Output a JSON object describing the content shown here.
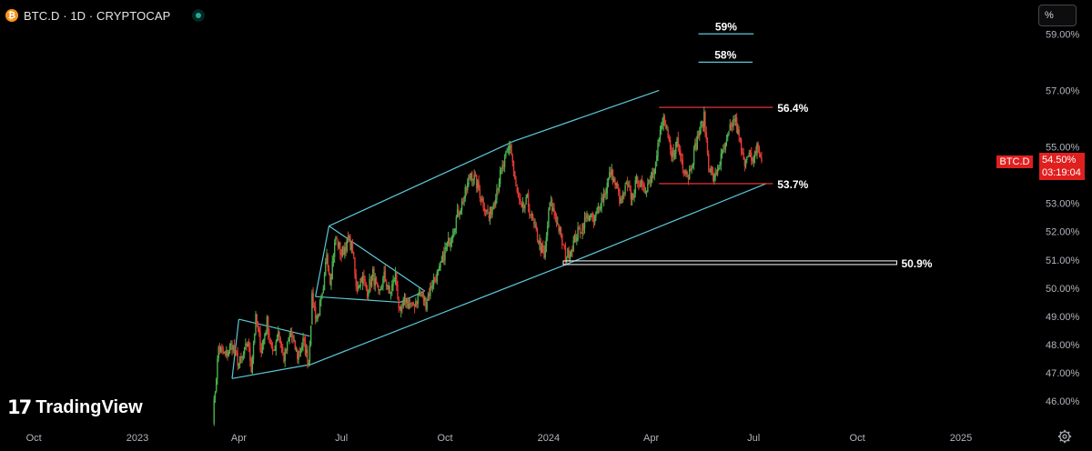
{
  "header": {
    "symbol_title": "BTC.D · 1D · CRYPTOCAP",
    "coin_icon": "bitcoin-icon",
    "status_icon": "market-open-dot-icon"
  },
  "scale_button": {
    "label": "%"
  },
  "last_price": {
    "symbol": "BTC.D",
    "value": "54.50%",
    "countdown": "03:19:04",
    "color": "#e01f1f"
  },
  "watermark": {
    "text": "TradingView",
    "icon": "tradingview-logo-icon"
  },
  "settings_icon": "gear-icon",
  "colors": {
    "background": "#000000",
    "up": "#4caf50",
    "down": "#e53935",
    "channel": "#5cc8d8",
    "axis_text": "#b2b5be",
    "level_red": "#ff3b3b"
  },
  "chart_data": {
    "type": "candlestick",
    "title": "BTC.D · 1D · CRYPTOCAP",
    "ylabel": "%",
    "ylim": [
      45.2,
      60.2
    ],
    "xlim": [
      "2022-09-01",
      "2025-03-05"
    ],
    "grid": false,
    "x_ticks": [
      {
        "date": "2022-10-01",
        "label": "Oct"
      },
      {
        "date": "2023-01-01",
        "label": "2023"
      },
      {
        "date": "2023-04-01",
        "label": "Apr"
      },
      {
        "date": "2023-07-01",
        "label": "Jul"
      },
      {
        "date": "2023-10-01",
        "label": "Oct"
      },
      {
        "date": "2024-01-01",
        "label": "2024"
      },
      {
        "date": "2024-04-01",
        "label": "Apr"
      },
      {
        "date": "2024-07-01",
        "label": "Jul"
      },
      {
        "date": "2024-10-01",
        "label": "Oct"
      },
      {
        "date": "2025-01-01",
        "label": "2025"
      }
    ],
    "y_ticks": [
      {
        "value": 46,
        "label": "46.00%"
      },
      {
        "value": 47,
        "label": "47.00%"
      },
      {
        "value": 48,
        "label": "48.00%"
      },
      {
        "value": 49,
        "label": "49.00%"
      },
      {
        "value": 50,
        "label": "50.00%"
      },
      {
        "value": 51,
        "label": "51.00%"
      },
      {
        "value": 52,
        "label": "52.00%"
      },
      {
        "value": 53,
        "label": "53.00%"
      },
      {
        "value": 55,
        "label": "55.00%"
      },
      {
        "value": 57,
        "label": "57.00%"
      },
      {
        "value": 59,
        "label": "59.00%"
      }
    ],
    "price_path": [
      [
        "2023-03-09",
        45.4
      ],
      [
        "2023-03-14",
        47.9
      ],
      [
        "2023-03-20",
        47.6
      ],
      [
        "2023-03-26",
        48.0
      ],
      [
        "2023-04-01",
        47.3
      ],
      [
        "2023-04-05",
        47.6
      ],
      [
        "2023-04-09",
        48.1
      ],
      [
        "2023-04-12",
        47.2
      ],
      [
        "2023-04-16",
        48.9
      ],
      [
        "2023-04-21",
        47.8
      ],
      [
        "2023-04-26",
        48.8
      ],
      [
        "2023-05-01",
        47.6
      ],
      [
        "2023-05-06",
        48.5
      ],
      [
        "2023-05-11",
        47.5
      ],
      [
        "2023-05-17",
        48.4
      ],
      [
        "2023-05-23",
        47.6
      ],
      [
        "2023-05-28",
        48.1
      ],
      [
        "2023-06-02",
        47.4
      ],
      [
        "2023-06-05",
        49.6
      ],
      [
        "2023-06-09",
        48.9
      ],
      [
        "2023-06-15",
        49.8
      ],
      [
        "2023-06-18",
        51.3
      ],
      [
        "2023-06-21",
        50.3
      ],
      [
        "2023-06-26",
        51.8
      ],
      [
        "2023-07-01",
        51.2
      ],
      [
        "2023-07-07",
        51.7
      ],
      [
        "2023-07-11",
        51.4
      ],
      [
        "2023-07-14",
        50.0
      ],
      [
        "2023-07-19",
        50.4
      ],
      [
        "2023-07-24",
        49.9
      ],
      [
        "2023-07-29",
        50.5
      ],
      [
        "2023-08-03",
        49.7
      ],
      [
        "2023-08-08",
        50.4
      ],
      [
        "2023-08-13",
        49.8
      ],
      [
        "2023-08-18",
        50.5
      ],
      [
        "2023-08-22",
        49.0
      ],
      [
        "2023-08-27",
        49.6
      ],
      [
        "2023-09-02",
        49.3
      ],
      [
        "2023-09-08",
        49.8
      ],
      [
        "2023-09-14",
        49.5
      ],
      [
        "2023-09-20",
        50.2
      ],
      [
        "2023-09-26",
        50.6
      ],
      [
        "2023-10-01",
        51.3
      ],
      [
        "2023-10-06",
        51.8
      ],
      [
        "2023-10-12",
        52.6
      ],
      [
        "2023-10-18",
        53.2
      ],
      [
        "2023-10-24",
        54.1
      ],
      [
        "2023-10-29",
        53.7
      ],
      [
        "2023-11-04",
        53.0
      ],
      [
        "2023-11-09",
        52.5
      ],
      [
        "2023-11-14",
        53.2
      ],
      [
        "2023-11-19",
        54.0
      ],
      [
        "2023-11-24",
        54.6
      ],
      [
        "2023-11-28",
        55.1
      ],
      [
        "2023-12-03",
        53.5
      ],
      [
        "2023-12-08",
        52.7
      ],
      [
        "2023-12-13",
        53.1
      ],
      [
        "2023-12-18",
        52.3
      ],
      [
        "2023-12-23",
        51.7
      ],
      [
        "2023-12-28",
        51.0
      ],
      [
        "2024-01-02",
        53.0
      ],
      [
        "2024-01-07",
        52.6
      ],
      [
        "2024-01-12",
        51.8
      ],
      [
        "2024-01-16",
        51.1
      ],
      [
        "2024-01-21",
        51.4
      ],
      [
        "2024-01-26",
        51.9
      ],
      [
        "2024-01-31",
        52.2
      ],
      [
        "2024-02-05",
        52.6
      ],
      [
        "2024-02-10",
        52.3
      ],
      [
        "2024-02-15",
        53.0
      ],
      [
        "2024-02-20",
        53.4
      ],
      [
        "2024-02-25",
        54.1
      ],
      [
        "2024-03-01",
        53.6
      ],
      [
        "2024-03-05",
        53.0
      ],
      [
        "2024-03-10",
        53.6
      ],
      [
        "2024-03-15",
        53.2
      ],
      [
        "2024-03-20",
        53.9
      ],
      [
        "2024-03-25",
        53.4
      ],
      [
        "2024-03-30",
        53.8
      ],
      [
        "2024-04-03",
        54.2
      ],
      [
        "2024-04-07",
        55.1
      ],
      [
        "2024-04-12",
        56.0
      ],
      [
        "2024-04-15",
        55.4
      ],
      [
        "2024-04-19",
        54.6
      ],
      [
        "2024-04-24",
        55.2
      ],
      [
        "2024-04-29",
        54.4
      ],
      [
        "2024-05-04",
        54.0
      ],
      [
        "2024-05-09",
        54.8
      ],
      [
        "2024-05-14",
        55.6
      ],
      [
        "2024-05-18",
        56.0
      ],
      [
        "2024-05-22",
        54.4
      ],
      [
        "2024-05-27",
        53.8
      ],
      [
        "2024-06-01",
        54.5
      ],
      [
        "2024-06-06",
        55.0
      ],
      [
        "2024-06-10",
        55.6
      ],
      [
        "2024-06-14",
        56.0
      ],
      [
        "2024-06-18",
        55.3
      ],
      [
        "2024-06-22",
        54.4
      ],
      [
        "2024-06-26",
        54.9
      ],
      [
        "2024-06-30",
        54.3
      ],
      [
        "2024-07-04",
        55.1
      ],
      [
        "2024-07-08",
        54.5
      ]
    ],
    "drawings": {
      "channel_upper": [
        [
          "2023-06-20",
          52.2
        ],
        [
          "2023-12-01",
          55.2
        ],
        [
          "2024-04-08",
          57.0
        ]
      ],
      "channel_lower": [
        [
          "2023-06-04",
          47.3
        ],
        [
          "2024-01-14",
          50.8
        ],
        [
          "2024-07-12",
          53.7
        ]
      ],
      "wedge_top": [
        [
          "2023-04-01",
          48.9
        ],
        [
          "2023-06-03",
          48.3
        ]
      ],
      "wedge_bottom": [
        [
          "2023-03-26",
          46.8
        ],
        [
          "2023-06-04",
          47.3
        ]
      ],
      "wedge_bottom_left": [
        [
          "2023-03-26",
          46.8
        ],
        [
          "2023-04-01",
          48.9
        ]
      ],
      "flag_top": [
        [
          "2023-06-20",
          52.2
        ],
        [
          "2023-09-13",
          49.9
        ]
      ],
      "flag_bottom": [
        [
          "2023-06-08",
          49.7
        ],
        [
          "2023-08-22",
          49.5
        ]
      ],
      "flag_right": [
        [
          "2023-08-22",
          49.5
        ],
        [
          "2023-09-13",
          49.9
        ]
      ],
      "flag_left": [
        [
          "2023-06-08",
          49.7
        ],
        [
          "2023-06-20",
          52.2
        ]
      ]
    },
    "levels": [
      {
        "label": "59%",
        "value": 59.0,
        "start": "2024-05-13",
        "end": "2024-07-01",
        "color": "#5cc8d8"
      },
      {
        "label": "58%",
        "value": 58.0,
        "start": "2024-05-13",
        "end": "2024-06-30",
        "color": "#5cc8d8"
      },
      {
        "label": "56.4%",
        "value": 56.4,
        "start": "2024-04-08",
        "end": "2024-07-18",
        "color": "#ff3b3b"
      },
      {
        "label": "53.7%",
        "value": 53.7,
        "start": "2024-04-08",
        "end": "2024-07-18",
        "color": "#ff3b3b"
      },
      {
        "label": "50.9%",
        "value": 50.9,
        "start": "2024-01-14",
        "end": "2024-11-05",
        "color": "#ffffff"
      }
    ]
  }
}
